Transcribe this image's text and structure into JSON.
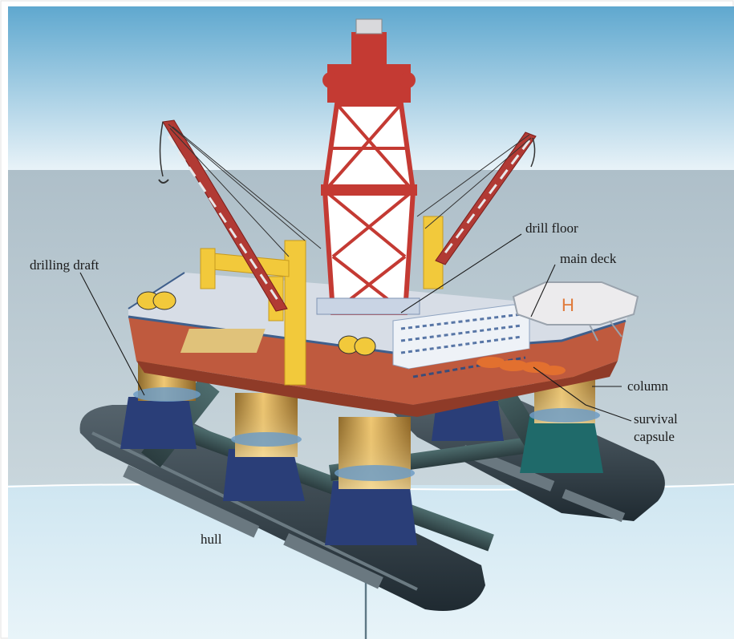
{
  "labels": {
    "drilling_draft": "drilling draft",
    "drill_floor": "drill floor",
    "main_deck": "main deck",
    "column": "column",
    "survival_capsule_line1": "survival",
    "survival_capsule_line2": "capsule",
    "hull": "hull"
  },
  "colors": {
    "sky_top": "#5fa8cf",
    "sky_bottom": "#e9f3f8",
    "sea_upper": "#b9c7cf",
    "sea_lower": "#d6eaf3",
    "derrick_red": "#c43a33",
    "deck_red": "#bf5a3e",
    "column_gold": "#d9a94a",
    "pontoon_dark": "#34424b",
    "crane_yellow": "#f2c93b",
    "helideck": "#e9e9ec"
  }
}
